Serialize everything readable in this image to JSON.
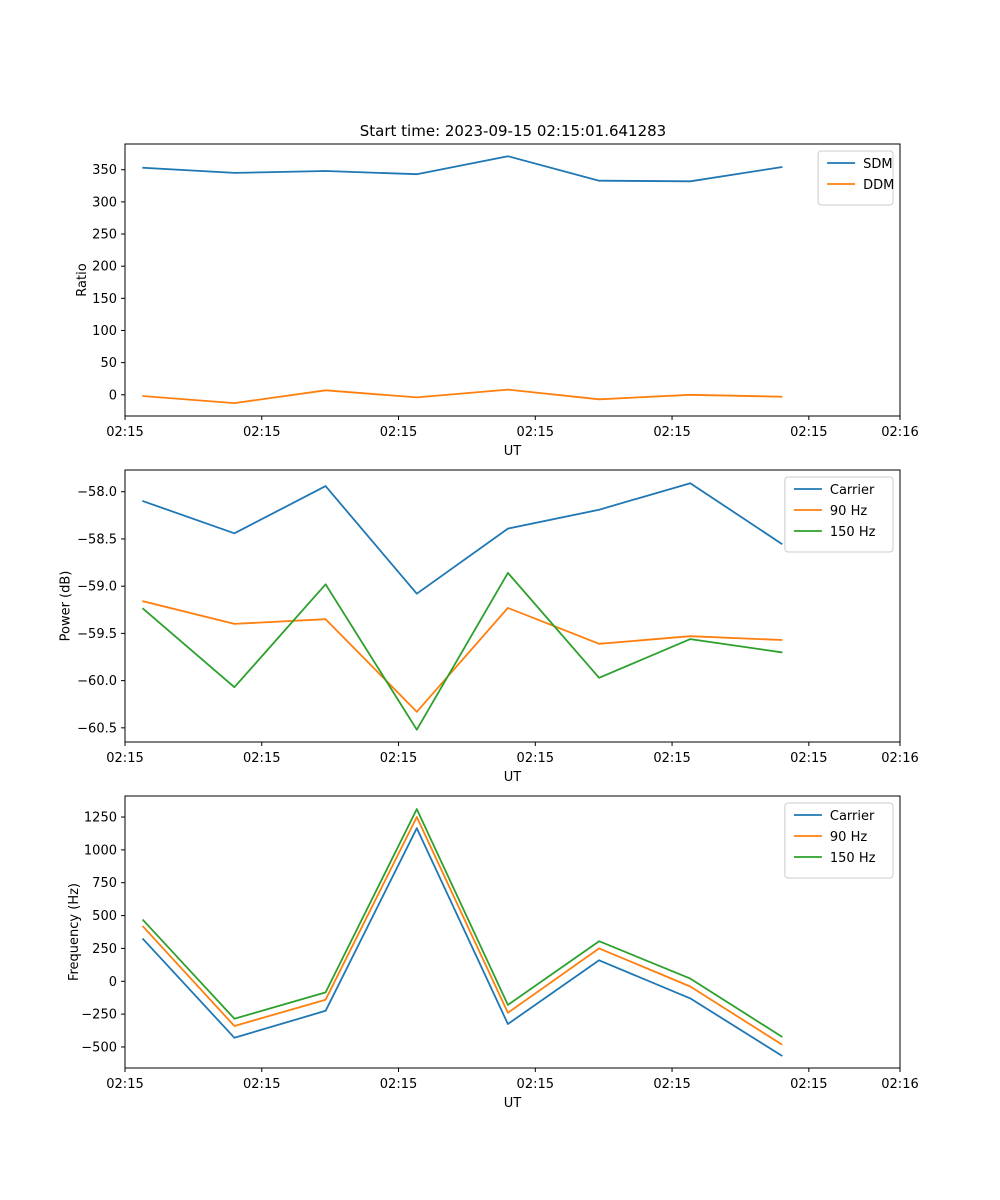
{
  "figure_title": "Start time: 2023-09-15 02:15:01.641283",
  "chart_data": [
    {
      "type": "line",
      "title": "Start time: 2023-09-15 02:15:01.641283",
      "xlabel": "UT",
      "ylabel": "Ratio",
      "x": [
        1,
        2,
        3,
        4,
        5,
        6,
        7,
        8
      ],
      "xlim": [
        0.8,
        9.3
      ],
      "xticks": [
        0.8,
        2.3,
        3.8,
        5.3,
        6.8,
        8.3,
        9.3
      ],
      "xtick_labels": [
        "02:15",
        "02:15",
        "02:15",
        "02:15",
        "02:15",
        "02:15",
        "02:16"
      ],
      "ylim": [
        -33,
        390
      ],
      "yticks": [
        0,
        50,
        100,
        150,
        200,
        250,
        300,
        350
      ],
      "ytick_labels": [
        "0",
        "50",
        "100",
        "150",
        "200",
        "250",
        "300",
        "350"
      ],
      "legend_position": "upper right",
      "series": [
        {
          "name": "SDM",
          "color": "#1f77b4",
          "values": [
            353,
            345,
            348,
            343,
            371,
            333,
            332,
            354
          ]
        },
        {
          "name": "DDM",
          "color": "#ff7f0e",
          "values": [
            -2,
            -13,
            7,
            -4,
            8,
            -7,
            0,
            -3
          ]
        }
      ]
    },
    {
      "type": "line",
      "title": "",
      "xlabel": "UT",
      "ylabel": "Power (dB)",
      "x": [
        1,
        2,
        3,
        4,
        5,
        6,
        7,
        8
      ],
      "xlim": [
        0.8,
        9.3
      ],
      "xticks": [
        0.8,
        2.3,
        3.8,
        5.3,
        6.8,
        8.3,
        9.3
      ],
      "xtick_labels": [
        "02:15",
        "02:15",
        "02:15",
        "02:15",
        "02:15",
        "02:15",
        "02:16"
      ],
      "ylim": [
        -60.65,
        -57.77
      ],
      "yticks": [
        -60.5,
        -60.0,
        -59.5,
        -59.0,
        -58.5,
        -58.0
      ],
      "ytick_labels": [
        "−60.5",
        "−60.0",
        "−59.5",
        "−59.0",
        "−58.5",
        "−58.0"
      ],
      "legend_position": "upper right",
      "series": [
        {
          "name": "Carrier",
          "color": "#1f77b4",
          "values": [
            -58.1,
            -58.44,
            -57.94,
            -59.08,
            -58.39,
            -58.19,
            -57.91,
            -58.55
          ]
        },
        {
          "name": "90 Hz",
          "color": "#ff7f0e",
          "values": [
            -59.16,
            -59.4,
            -59.35,
            -60.33,
            -59.23,
            -59.61,
            -59.53,
            -59.57
          ]
        },
        {
          "name": "150 Hz",
          "color": "#2ca02c",
          "values": [
            -59.24,
            -60.07,
            -58.98,
            -60.52,
            -58.86,
            -59.97,
            -59.56,
            -59.7
          ]
        }
      ]
    },
    {
      "type": "line",
      "title": "",
      "xlabel": "UT",
      "ylabel": "Frequency (Hz)",
      "x": [
        1,
        2,
        3,
        4,
        5,
        6,
        7,
        8
      ],
      "xlim": [
        0.8,
        9.3
      ],
      "xticks": [
        0.8,
        2.3,
        3.8,
        5.3,
        6.8,
        8.3,
        9.3
      ],
      "xtick_labels": [
        "02:15",
        "02:15",
        "02:15",
        "02:15",
        "02:15",
        "02:15",
        "02:16"
      ],
      "ylim": [
        -660,
        1410
      ],
      "yticks": [
        -500,
        -250,
        0,
        250,
        500,
        750,
        1000,
        1250
      ],
      "ytick_labels": [
        "−500",
        "−250",
        "0",
        "250",
        "500",
        "750",
        "1000",
        "1250"
      ],
      "legend_position": "upper right",
      "series": [
        {
          "name": "Carrier",
          "color": "#1f77b4",
          "values": [
            320,
            -430,
            -225,
            1165,
            -325,
            160,
            -130,
            -565
          ]
        },
        {
          "name": "90 Hz",
          "color": "#ff7f0e",
          "values": [
            415,
            -340,
            -140,
            1250,
            -240,
            250,
            -40,
            -480
          ]
        },
        {
          "name": "150 Hz",
          "color": "#2ca02c",
          "values": [
            465,
            -285,
            -85,
            1310,
            -180,
            305,
            20,
            -420
          ]
        }
      ]
    }
  ]
}
